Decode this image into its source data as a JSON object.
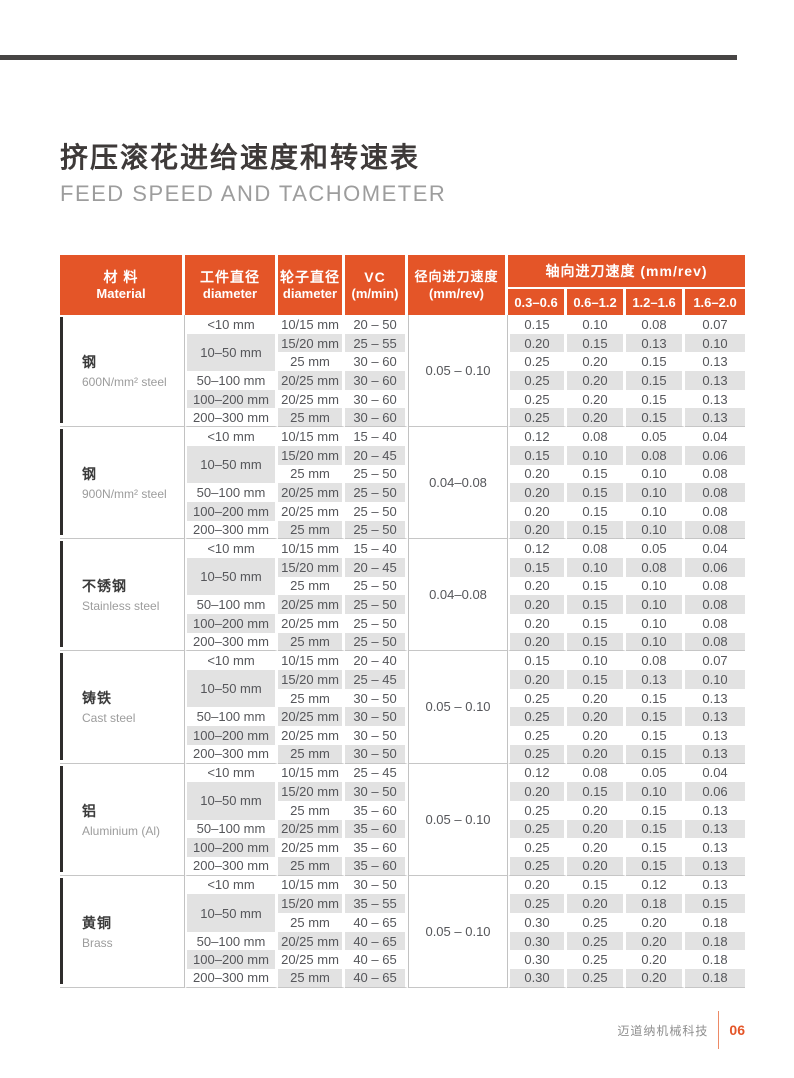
{
  "colors": {
    "accent": "#E45528",
    "row_alt_bg": "#E2E2E2",
    "separator_line": "#C6C6C6",
    "material_bar": "#2F2D2C",
    "top_rule": "#474544"
  },
  "page": {
    "title_zh": "挤压滚花进给速度和转速表",
    "title_en": "FEED SPEED AND TACHOMETER",
    "footer": {
      "company": "迈道纳机械科技",
      "page_number": "06"
    }
  },
  "table": {
    "header": {
      "material_zh": "材 料",
      "material_en": "Material",
      "workpiece_zh": "工件直径",
      "workpiece_en": "diameter",
      "wheel_zh": "轮子直径",
      "wheel_en": "diameter",
      "vc_line1": "VC",
      "vc_line2": "(m/min)",
      "radial_zh": "径向进刀速度",
      "radial_en": "(mm/rev)",
      "axial_label": "轴向进刀速度 (mm/rev)",
      "axial_ranges": [
        "0.3–0.6",
        "0.6–1.2",
        "1.2–1.6",
        "1.6–2.0"
      ]
    },
    "groups": [
      {
        "material_zh": "钢",
        "material_en": "600N/mm² steel",
        "radial_feed": "0.05 – 0.10",
        "rows": [
          {
            "workpiece": "<10 mm",
            "wheel": "10/15 mm",
            "vc": "20 – 50",
            "axial": [
              "0.15",
              "0.10",
              "0.08",
              "0.07"
            ]
          },
          {
            "workpiece": "10–50 mm",
            "workpiece_rowspan": 2,
            "wheel": "15/20 mm",
            "vc": "25 – 55",
            "axial": [
              "0.20",
              "0.15",
              "0.13",
              "0.10"
            ]
          },
          {
            "wheel": "25 mm",
            "vc": "30 – 60",
            "axial": [
              "0.25",
              "0.20",
              "0.15",
              "0.13"
            ]
          },
          {
            "workpiece": "50–100 mm",
            "wheel": "20/25 mm",
            "vc": "30 – 60",
            "axial": [
              "0.25",
              "0.20",
              "0.15",
              "0.13"
            ]
          },
          {
            "workpiece": "100–200 mm",
            "wheel": "20/25 mm",
            "vc": "30 – 60",
            "axial": [
              "0.25",
              "0.20",
              "0.15",
              "0.13"
            ]
          },
          {
            "workpiece": "200–300 mm",
            "wheel": "25 mm",
            "vc": "30 – 60",
            "axial": [
              "0.25",
              "0.20",
              "0.15",
              "0.13"
            ]
          }
        ]
      },
      {
        "material_zh": "钢",
        "material_en": "900N/mm² steel",
        "radial_feed": "0.04–0.08",
        "rows": [
          {
            "workpiece": "<10 mm",
            "wheel": "10/15 mm",
            "vc": "15 – 40",
            "axial": [
              "0.12",
              "0.08",
              "0.05",
              "0.04"
            ]
          },
          {
            "workpiece": "10–50 mm",
            "workpiece_rowspan": 2,
            "wheel": "15/20 mm",
            "vc": "20 – 45",
            "axial": [
              "0.15",
              "0.10",
              "0.08",
              "0.06"
            ]
          },
          {
            "wheel": "25 mm",
            "vc": "25 – 50",
            "axial": [
              "0.20",
              "0.15",
              "0.10",
              "0.08"
            ]
          },
          {
            "workpiece": "50–100 mm",
            "wheel": "20/25 mm",
            "vc": "25 – 50",
            "axial": [
              "0.20",
              "0.15",
              "0.10",
              "0.08"
            ]
          },
          {
            "workpiece": "100–200 mm",
            "wheel": "20/25 mm",
            "vc": "25 – 50",
            "axial": [
              "0.20",
              "0.15",
              "0.10",
              "0.08"
            ]
          },
          {
            "workpiece": "200–300 mm",
            "wheel": "25 mm",
            "vc": "25 – 50",
            "axial": [
              "0.20",
              "0.15",
              "0.10",
              "0.08"
            ]
          }
        ]
      },
      {
        "material_zh": "不锈钢",
        "material_en": "Stainless steel",
        "radial_feed": "0.04–0.08",
        "rows": [
          {
            "workpiece": "<10 mm",
            "wheel": "10/15 mm",
            "vc": "15 – 40",
            "axial": [
              "0.12",
              "0.08",
              "0.05",
              "0.04"
            ]
          },
          {
            "workpiece": "10–50 mm",
            "workpiece_rowspan": 2,
            "wheel": "15/20 mm",
            "vc": "20 – 45",
            "axial": [
              "0.15",
              "0.10",
              "0.08",
              "0.06"
            ]
          },
          {
            "wheel": "25 mm",
            "vc": "25 – 50",
            "axial": [
              "0.20",
              "0.15",
              "0.10",
              "0.08"
            ]
          },
          {
            "workpiece": "50–100 mm",
            "wheel": "20/25 mm",
            "vc": "25 – 50",
            "axial": [
              "0.20",
              "0.15",
              "0.10",
              "0.08"
            ]
          },
          {
            "workpiece": "100–200 mm",
            "wheel": "20/25 mm",
            "vc": "25 – 50",
            "axial": [
              "0.20",
              "0.15",
              "0.10",
              "0.08"
            ]
          },
          {
            "workpiece": "200–300 mm",
            "wheel": "25 mm",
            "vc": "25 – 50",
            "axial": [
              "0.20",
              "0.15",
              "0.10",
              "0.08"
            ]
          }
        ]
      },
      {
        "material_zh": "铸铁",
        "material_en": "Cast steel",
        "radial_feed": "0.05 – 0.10",
        "rows": [
          {
            "workpiece": "<10 mm",
            "wheel": "10/15 mm",
            "vc": "20 – 40",
            "axial": [
              "0.15",
              "0.10",
              "0.08",
              "0.07"
            ]
          },
          {
            "workpiece": "10–50 mm",
            "workpiece_rowspan": 2,
            "wheel": "15/20 mm",
            "vc": "25 – 45",
            "axial": [
              "0.20",
              "0.15",
              "0.13",
              "0.10"
            ]
          },
          {
            "wheel": "25 mm",
            "vc": "30 – 50",
            "axial": [
              "0.25",
              "0.20",
              "0.15",
              "0.13"
            ]
          },
          {
            "workpiece": "50–100 mm",
            "wheel": "20/25 mm",
            "vc": "30 – 50",
            "axial": [
              "0.25",
              "0.20",
              "0.15",
              "0.13"
            ]
          },
          {
            "workpiece": "100–200 mm",
            "wheel": "20/25 mm",
            "vc": "30 – 50",
            "axial": [
              "0.25",
              "0.20",
              "0.15",
              "0.13"
            ]
          },
          {
            "workpiece": "200–300 mm",
            "wheel": "25 mm",
            "vc": "30 – 50",
            "axial": [
              "0.25",
              "0.20",
              "0.15",
              "0.13"
            ]
          }
        ]
      },
      {
        "material_zh": "铝",
        "material_en": "Aluminium (Al)",
        "radial_feed": "0.05 – 0.10",
        "rows": [
          {
            "workpiece": "<10 mm",
            "wheel": "10/15 mm",
            "vc": "25 – 45",
            "axial": [
              "0.12",
              "0.08",
              "0.05",
              "0.04"
            ]
          },
          {
            "workpiece": "10–50 mm",
            "workpiece_rowspan": 2,
            "wheel": "15/20 mm",
            "vc": "30 – 50",
            "axial": [
              "0.20",
              "0.15",
              "0.10",
              "0.06"
            ]
          },
          {
            "wheel": "25 mm",
            "vc": "35 – 60",
            "axial": [
              "0.25",
              "0.20",
              "0.15",
              "0.13"
            ]
          },
          {
            "workpiece": "50–100 mm",
            "wheel": "20/25 mm",
            "vc": "35 – 60",
            "axial": [
              "0.25",
              "0.20",
              "0.15",
              "0.13"
            ]
          },
          {
            "workpiece": "100–200 mm",
            "wheel": "20/25 mm",
            "vc": "35 – 60",
            "axial": [
              "0.25",
              "0.20",
              "0.15",
              "0.13"
            ]
          },
          {
            "workpiece": "200–300 mm",
            "wheel": "25 mm",
            "vc": "35 – 60",
            "axial": [
              "0.25",
              "0.20",
              "0.15",
              "0.13"
            ]
          }
        ]
      },
      {
        "material_zh": "黄铜",
        "material_en": "Brass",
        "radial_feed": "0.05 – 0.10",
        "rows": [
          {
            "workpiece": "<10 mm",
            "wheel": "10/15 mm",
            "vc": "30 – 50",
            "axial": [
              "0.20",
              "0.15",
              "0.12",
              "0.13"
            ]
          },
          {
            "workpiece": "10–50 mm",
            "workpiece_rowspan": 2,
            "wheel": "15/20 mm",
            "vc": "35 – 55",
            "axial": [
              "0.25",
              "0.20",
              "0.18",
              "0.15"
            ]
          },
          {
            "wheel": "25 mm",
            "vc": "40 – 65",
            "axial": [
              "0.30",
              "0.25",
              "0.20",
              "0.18"
            ]
          },
          {
            "workpiece": "50–100 mm",
            "wheel": "20/25 mm",
            "vc": "40 – 65",
            "axial": [
              "0.30",
              "0.25",
              "0.20",
              "0.18"
            ]
          },
          {
            "workpiece": "100–200 mm",
            "wheel": "20/25 mm",
            "vc": "40 – 65",
            "axial": [
              "0.30",
              "0.25",
              "0.20",
              "0.18"
            ]
          },
          {
            "workpiece": "200–300 mm",
            "wheel": "25 mm",
            "vc": "40 – 65",
            "axial": [
              "0.30",
              "0.25",
              "0.20",
              "0.18"
            ]
          }
        ]
      }
    ]
  }
}
